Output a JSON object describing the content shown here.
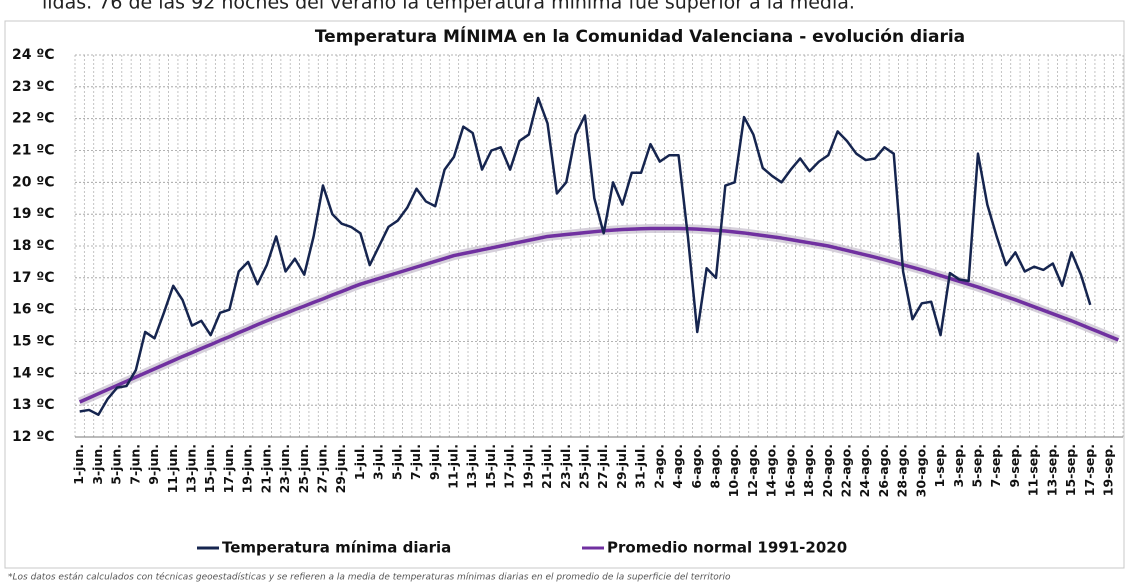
{
  "chart_data": {
    "type": "line",
    "caption": "lidas. 76 de las 92 noches del verano la temperatura mínima fue superior a la media.",
    "title": "Temperatura MÍNIMA en la Comunidad Valenciana - evolución diaria",
    "note": "*Los datos están calculados con técnicas geoestadísticas y se refieren a la media de temperaturas mínimas diarias en el promedio de la superficie del territorio",
    "categories": [
      "1-jun.",
      null,
      "3-jun.",
      null,
      "5-jun.",
      null,
      "7-jun.",
      null,
      "9-jun.",
      null,
      "11-jun.",
      null,
      "13-jun.",
      null,
      "15-jun.",
      null,
      "17-jun.",
      null,
      "19-jun.",
      null,
      "21-jun.",
      null,
      "23-jun.",
      null,
      "25-jun.",
      null,
      "27-jun.",
      null,
      "29-jun.",
      null,
      "1-jul.",
      null,
      "3-jul.",
      null,
      "5-jul.",
      null,
      "7-jul.",
      null,
      "9-jul.",
      null,
      "11-jul.",
      null,
      "13-jul.",
      null,
      "15-jul.",
      null,
      "17-jul.",
      null,
      "19-jul.",
      null,
      "21-jul.",
      null,
      "23-jul.",
      null,
      "25-jul.",
      null,
      "27-jul.",
      null,
      "29-jul.",
      null,
      "31-jul.",
      null,
      "2-ago.",
      null,
      "4-ago.",
      null,
      "6-ago.",
      null,
      "8-ago.",
      null,
      "10-ago.",
      null,
      "12-ago.",
      null,
      "14-ago.",
      null,
      "16-ago.",
      null,
      "18-ago.",
      null,
      "20-ago.",
      null,
      "22-ago.",
      null,
      "24-ago.",
      null,
      "26-ago.",
      null,
      "28-ago.",
      null,
      "30-ago.",
      null,
      "1-sep.",
      null,
      "3-sep.",
      null,
      "5-sep.",
      null,
      "7-sep.",
      null,
      "9-sep.",
      null,
      "11-sep.",
      null,
      "13-sep.",
      null,
      "15-sep.",
      null,
      "17-sep.",
      null,
      "19-sep.",
      null
    ],
    "series": [
      {
        "name": "Temperatura mínima diaria",
        "color": "#16254f",
        "values": [
          12.8,
          12.85,
          12.7,
          13.2,
          13.55,
          13.6,
          14.1,
          15.3,
          15.1,
          15.9,
          16.75,
          16.3,
          15.5,
          15.65,
          15.2,
          15.9,
          16.0,
          17.2,
          17.5,
          16.8,
          17.4,
          18.3,
          17.2,
          17.6,
          17.1,
          18.3,
          19.9,
          19.0,
          18.7,
          18.6,
          18.4,
          17.4,
          18.0,
          18.6,
          18.8,
          19.2,
          19.8,
          19.4,
          19.25,
          20.4,
          20.8,
          21.75,
          21.55,
          20.4,
          21.0,
          21.1,
          20.4,
          21.3,
          21.5,
          22.65,
          21.85,
          19.65,
          20.0,
          21.5,
          22.1,
          19.5,
          18.4,
          20.0,
          19.3,
          20.3,
          20.3,
          21.2,
          20.65,
          20.85,
          20.85,
          18.3,
          15.3,
          17.3,
          17.0,
          19.9,
          20.0,
          22.05,
          21.5,
          20.45,
          20.2,
          20.0,
          20.4,
          20.75,
          20.35,
          20.65,
          20.85,
          21.6,
          21.3,
          20.9,
          20.7,
          20.75,
          21.1,
          20.9,
          17.2,
          15.7,
          16.2,
          16.25,
          15.2,
          17.15,
          16.95,
          16.9,
          20.9,
          19.3,
          18.3,
          17.4,
          17.8,
          17.2,
          17.35,
          17.25,
          17.45,
          16.75,
          17.8,
          17.1,
          16.15,
          null,
          null,
          null
        ]
      },
      {
        "name": "Promedio normal 1991-2020",
        "color": "#7030a0",
        "values": [
          13.1,
          13.23,
          13.36,
          13.49,
          13.62,
          13.75,
          13.88,
          14.01,
          14.14,
          14.27,
          14.4,
          14.53,
          14.65,
          14.78,
          14.9,
          15.03,
          15.15,
          15.28,
          15.4,
          15.53,
          15.65,
          15.77,
          15.88,
          16.0,
          16.11,
          16.23,
          16.34,
          16.46,
          16.57,
          16.69,
          16.8,
          16.89,
          16.98,
          17.07,
          17.16,
          17.25,
          17.34,
          17.43,
          17.52,
          17.61,
          17.7,
          17.76,
          17.82,
          17.88,
          17.94,
          18.0,
          18.06,
          18.12,
          18.18,
          18.24,
          18.3,
          18.33,
          18.36,
          18.39,
          18.42,
          18.45,
          18.48,
          18.5,
          18.52,
          18.53,
          18.54,
          18.55,
          18.55,
          18.55,
          18.55,
          18.54,
          18.53,
          18.51,
          18.49,
          18.47,
          18.44,
          18.41,
          18.37,
          18.33,
          18.29,
          18.25,
          18.2,
          18.15,
          18.1,
          18.05,
          18.0,
          17.93,
          17.86,
          17.79,
          17.72,
          17.65,
          17.57,
          17.49,
          17.41,
          17.33,
          17.25,
          17.16,
          17.07,
          16.98,
          16.89,
          16.8,
          16.71,
          16.61,
          16.51,
          16.41,
          16.31,
          16.2,
          16.09,
          15.98,
          15.87,
          15.76,
          15.65,
          15.53,
          15.41,
          15.29,
          15.17,
          15.05
        ]
      }
    ],
    "ylim": [
      12,
      24
    ],
    "yticks": [
      {
        "value": 12,
        "label": "12 ºC"
      },
      {
        "value": 13,
        "label": "13 ºC"
      },
      {
        "value": 14,
        "label": "14 ºC"
      },
      {
        "value": 15,
        "label": "15 ºC"
      },
      {
        "value": 16,
        "label": "16 ºC"
      },
      {
        "value": 17,
        "label": "17 ºC"
      },
      {
        "value": 18,
        "label": "18 ºC"
      },
      {
        "value": 19,
        "label": "19 ºC"
      },
      {
        "value": 20,
        "label": "20 ºC"
      },
      {
        "value": 21,
        "label": "21 ºC"
      },
      {
        "value": 22,
        "label": "22 ºC"
      },
      {
        "value": 23,
        "label": "23 ºC"
      },
      {
        "value": 24,
        "label": "24 ºC"
      }
    ],
    "grid": true
  }
}
